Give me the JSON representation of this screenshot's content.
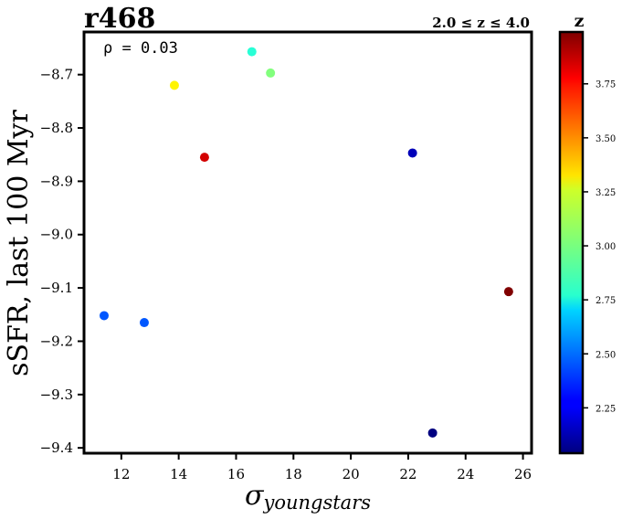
{
  "chart_data": {
    "type": "scatter",
    "title": "r468",
    "z_range_label": "2.0 ≤ z ≤ 4.0",
    "annotation": "ρ = 0.03",
    "xlabel_base": "σ",
    "xlabel_sub": "youngstars",
    "ylabel": "sSFR, last 100 Myr",
    "xlim": [
      10.7,
      26.3
    ],
    "ylim": [
      -9.41,
      -8.62
    ],
    "xticks": [
      12,
      14,
      16,
      18,
      20,
      22,
      24,
      26
    ],
    "yticks": [
      -8.7,
      -8.8,
      -8.9,
      -9.0,
      -9.1,
      -9.2,
      -9.3,
      -9.4
    ],
    "grid": false,
    "colorbar": {
      "label": "z",
      "range": [
        2.04,
        3.99
      ],
      "ticks": [
        2.25,
        2.5,
        2.75,
        3.0,
        3.25,
        3.5,
        3.75
      ],
      "colormap": "jet"
    },
    "points": [
      {
        "x": 16.55,
        "y": -8.657,
        "z": 2.85
      },
      {
        "x": 17.2,
        "y": -8.697,
        "z": 3.02
      },
      {
        "x": 13.85,
        "y": -8.72,
        "z": 3.28
      },
      {
        "x": 14.9,
        "y": -8.855,
        "z": 3.83
      },
      {
        "x": 22.15,
        "y": -8.847,
        "z": 2.15
      },
      {
        "x": 25.5,
        "y": -9.107,
        "z": 3.99
      },
      {
        "x": 11.4,
        "y": -9.152,
        "z": 2.45
      },
      {
        "x": 12.8,
        "y": -9.165,
        "z": 2.45
      },
      {
        "x": 22.85,
        "y": -9.372,
        "z": 2.04
      }
    ]
  }
}
